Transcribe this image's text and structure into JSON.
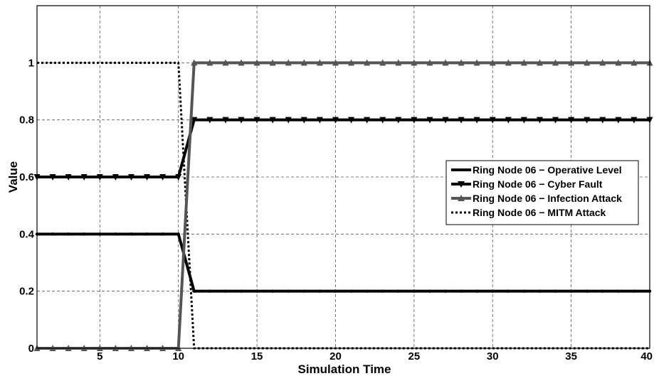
{
  "chart_data": {
    "type": "line",
    "title": "",
    "xlabel": "Simulation Time",
    "ylabel": "Value",
    "xlim": [
      1,
      40
    ],
    "ylim": [
      0,
      1.2
    ],
    "xticks": [
      5,
      10,
      15,
      20,
      25,
      30,
      35,
      40
    ],
    "yticks": [
      0,
      0.2,
      0.4,
      0.6,
      0.8,
      1
    ],
    "ytick_labels": [
      "0",
      "0.2",
      "0.4",
      "0.6",
      "0.8",
      "1"
    ],
    "grid": true,
    "legend_position": "right",
    "x": [
      1,
      2,
      3,
      4,
      5,
      6,
      7,
      8,
      9,
      10,
      11,
      12,
      13,
      14,
      15,
      16,
      17,
      18,
      19,
      20,
      21,
      22,
      23,
      24,
      25,
      26,
      27,
      28,
      29,
      30,
      31,
      32,
      33,
      34,
      35,
      36,
      37,
      38,
      39,
      40
    ],
    "series": [
      {
        "name": "Ring Node 06 − Operative Level",
        "color": "#000000",
        "style": "solid",
        "marker": "dot",
        "values": [
          0.4,
          0.4,
          0.4,
          0.4,
          0.4,
          0.4,
          0.4,
          0.4,
          0.4,
          0.4,
          0.2,
          0.2,
          0.2,
          0.2,
          0.2,
          0.2,
          0.2,
          0.2,
          0.2,
          0.2,
          0.2,
          0.2,
          0.2,
          0.2,
          0.2,
          0.2,
          0.2,
          0.2,
          0.2,
          0.2,
          0.2,
          0.2,
          0.2,
          0.2,
          0.2,
          0.2,
          0.2,
          0.2,
          0.2,
          0.2
        ]
      },
      {
        "name": "Ring Node 06 − Cyber Fault",
        "color": "#000000",
        "style": "solid",
        "marker": "triangle-down",
        "values": [
          0.6,
          0.6,
          0.6,
          0.6,
          0.6,
          0.6,
          0.6,
          0.6,
          0.6,
          0.6,
          0.8,
          0.8,
          0.8,
          0.8,
          0.8,
          0.8,
          0.8,
          0.8,
          0.8,
          0.8,
          0.8,
          0.8,
          0.8,
          0.8,
          0.8,
          0.8,
          0.8,
          0.8,
          0.8,
          0.8,
          0.8,
          0.8,
          0.8,
          0.8,
          0.8,
          0.8,
          0.8,
          0.8,
          0.8,
          0.8
        ]
      },
      {
        "name": "Ring Node 06 − Infection Attack",
        "color": "#555555",
        "style": "solid",
        "marker": "triangle-up",
        "values": [
          0,
          0,
          0,
          0,
          0,
          0,
          0,
          0,
          0,
          0,
          1,
          1,
          1,
          1,
          1,
          1,
          1,
          1,
          1,
          1,
          1,
          1,
          1,
          1,
          1,
          1,
          1,
          1,
          1,
          1,
          1,
          1,
          1,
          1,
          1,
          1,
          1,
          1,
          1,
          1
        ]
      },
      {
        "name": "Ring Node 06 − MITM Attack",
        "color": "#000000",
        "style": "dotted",
        "marker": "none",
        "values": [
          1,
          1,
          1,
          1,
          1,
          1,
          1,
          1,
          1,
          1,
          0,
          0,
          0,
          0,
          0,
          0,
          0,
          0,
          0,
          0,
          0,
          0,
          0,
          0,
          0,
          0,
          0,
          0,
          0,
          0,
          0,
          0,
          0,
          0,
          0,
          0,
          0,
          0,
          0,
          0
        ]
      }
    ]
  }
}
